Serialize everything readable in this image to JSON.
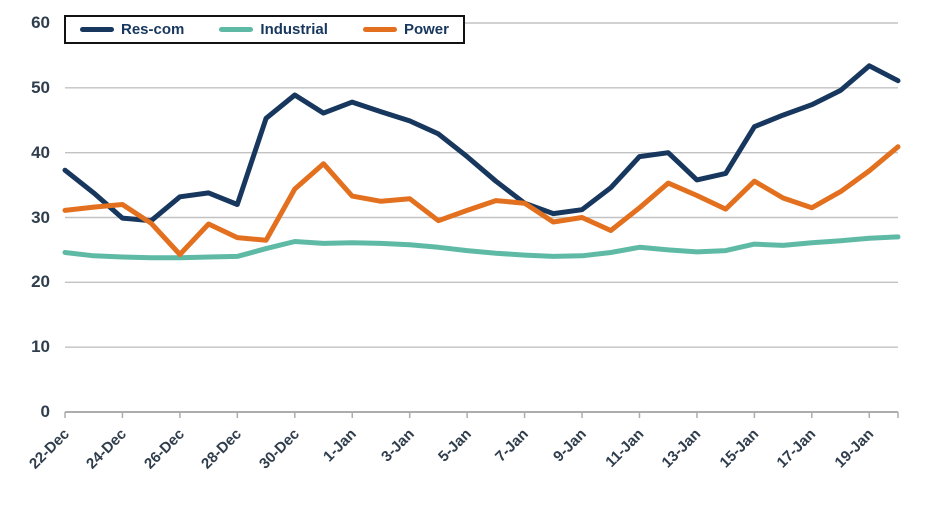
{
  "chart_data": {
    "type": "line",
    "x": [
      "22-Dec",
      "23-Dec",
      "24-Dec",
      "25-Dec",
      "26-Dec",
      "27-Dec",
      "28-Dec",
      "29-Dec",
      "30-Dec",
      "31-Dec",
      "1-Jan",
      "2-Jan",
      "3-Jan",
      "4-Jan",
      "5-Jan",
      "6-Jan",
      "7-Jan",
      "8-Jan",
      "9-Jan",
      "10-Jan",
      "11-Jan",
      "12-Jan",
      "13-Jan",
      "14-Jan",
      "15-Jan",
      "16-Jan",
      "17-Jan",
      "18-Jan",
      "19-Jan",
      "20-Jan"
    ],
    "x_tick_labels": [
      "22-Dec",
      "24-Dec",
      "26-Dec",
      "28-Dec",
      "30-Dec",
      "1-Jan",
      "3-Jan",
      "5-Jan",
      "7-Jan",
      "9-Jan",
      "11-Jan",
      "13-Jan",
      "15-Jan",
      "17-Jan",
      "19-Jan"
    ],
    "y_ticks": [
      "0",
      "10",
      "20",
      "30",
      "40",
      "50",
      "60"
    ],
    "ylim": [
      0,
      60
    ],
    "grid": "horizontal",
    "legend_position": "top-left",
    "series": [
      {
        "name": "Res-com",
        "color": "#17375E",
        "values": [
          37.3,
          33.8,
          29.9,
          29.5,
          33.2,
          33.8,
          32.0,
          45.3,
          48.9,
          46.1,
          47.8,
          46.3,
          44.9,
          42.9,
          39.4,
          35.6,
          32.2,
          30.6,
          31.2,
          34.6,
          39.4,
          40.0,
          35.8,
          36.8,
          44.0,
          45.8,
          47.4,
          49.6,
          53.4,
          51.1
        ]
      },
      {
        "name": "Industrial",
        "color": "#5FBAA5",
        "values": [
          24.6,
          24.1,
          23.9,
          23.8,
          23.8,
          23.9,
          24.0,
          25.2,
          26.3,
          26.0,
          26.1,
          26.0,
          25.8,
          25.4,
          24.9,
          24.5,
          24.2,
          24.0,
          24.1,
          24.6,
          25.4,
          25.0,
          24.7,
          24.9,
          25.9,
          25.7,
          26.1,
          26.4,
          26.8,
          27.0
        ]
      },
      {
        "name": "Power",
        "color": "#E2701E",
        "values": [
          31.1,
          31.6,
          32.0,
          29.1,
          24.3,
          29.0,
          26.9,
          26.5,
          34.4,
          38.3,
          33.3,
          32.5,
          32.9,
          29.5,
          31.1,
          32.6,
          32.2,
          29.3,
          30.0,
          28.0,
          31.5,
          35.3,
          33.4,
          31.3,
          35.6,
          33.0,
          31.5,
          34.0,
          37.2,
          40.9
        ]
      }
    ],
    "colors": {
      "grid_line": "#C2C2C2",
      "axis_line": "#ADADAD",
      "tick_label": "#2F3D4C",
      "legend_border": "#121212"
    }
  }
}
